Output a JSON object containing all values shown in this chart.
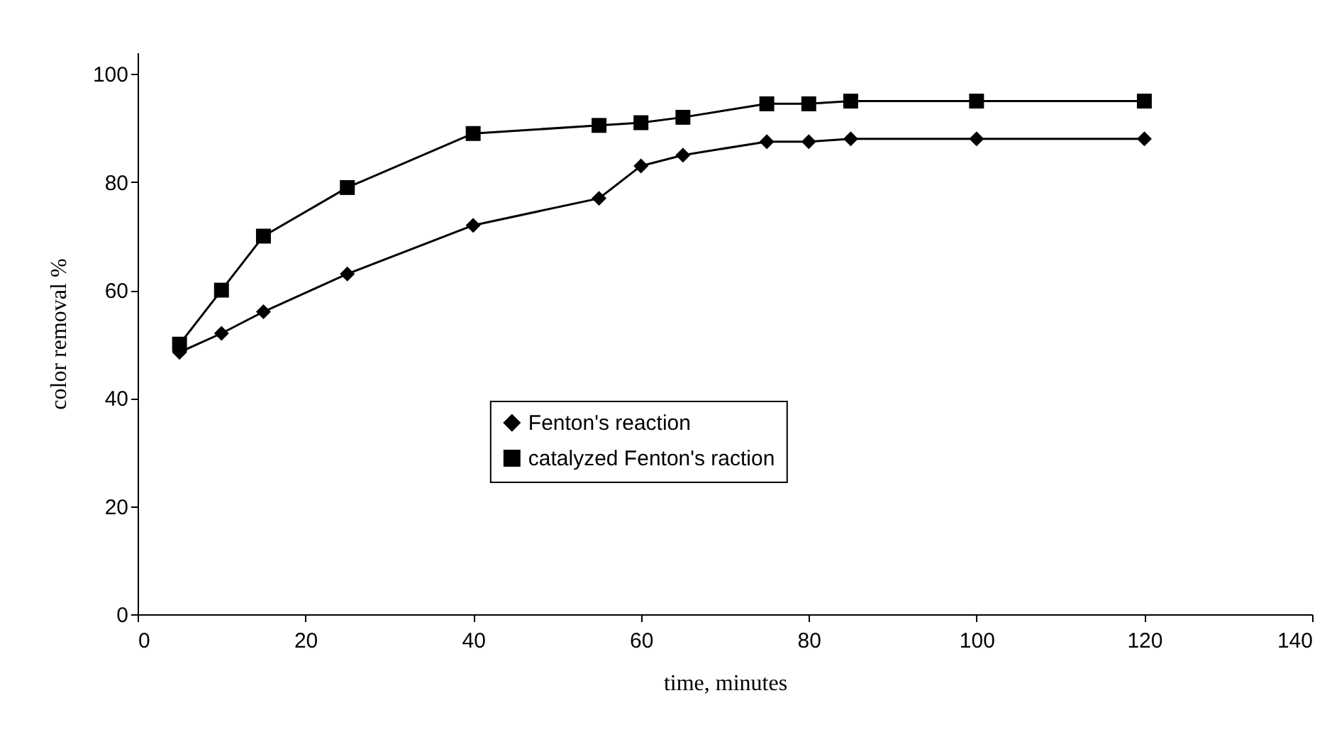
{
  "chart_data": {
    "type": "line",
    "xlabel": "time, minutes",
    "ylabel": "color removal %",
    "x": [
      5,
      10,
      15,
      25,
      40,
      55,
      60,
      65,
      75,
      80,
      85,
      100,
      120
    ],
    "series": [
      {
        "name": "Fenton's reaction",
        "color": "#000000",
        "marker": "diamond",
        "values": [
          48.5,
          52,
          56,
          63,
          72,
          77,
          83,
          85,
          87.5,
          87.5,
          88,
          88,
          88
        ]
      },
      {
        "name": "catalyzed Fenton's raction",
        "color": "#000000",
        "marker": "square",
        "values": [
          50,
          60,
          70,
          79,
          89,
          90.5,
          91,
          92,
          94.5,
          94.5,
          95,
          95,
          95
        ]
      }
    ],
    "xlim": [
      0,
      140
    ],
    "xticks": [
      0,
      20,
      40,
      60,
      80,
      100,
      120,
      140
    ],
    "ylim": [
      0,
      104
    ],
    "yticks": [
      0,
      20,
      40,
      60,
      80,
      100
    ],
    "grid": false,
    "legend": "bottom",
    "line_style": "solid"
  }
}
